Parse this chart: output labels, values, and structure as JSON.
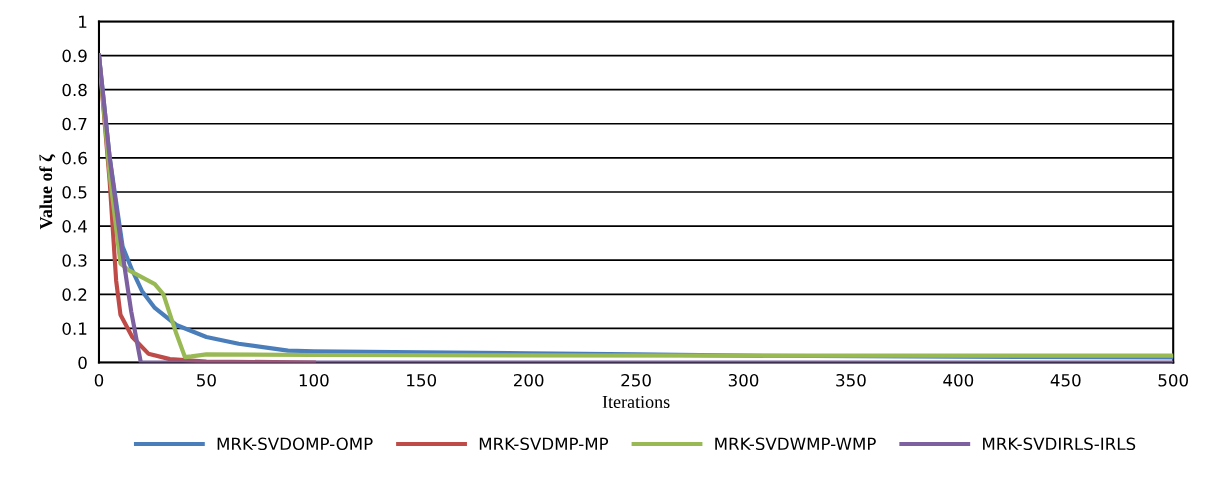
{
  "chart_data": {
    "type": "line",
    "xlabel": "Iterations",
    "ylabel": "Value of ζ",
    "xlim": [
      0,
      500
    ],
    "xticks": [
      0,
      50,
      100,
      150,
      200,
      250,
      300,
      350,
      400,
      450,
      500
    ],
    "ylim": [
      0,
      1
    ],
    "yticks": [
      0,
      0.1,
      0.2,
      0.3,
      0.4,
      0.5,
      0.6,
      0.7,
      0.8,
      0.9,
      1
    ],
    "grid": "y",
    "legend": "bottom",
    "marker": "none",
    "line_style": "solid",
    "series": [
      {
        "name": "MRK-SVDOMP-OMP",
        "color": "#4a7ebb",
        "x": [
          0,
          5,
          11,
          15.5,
          20,
          26,
          36,
          50,
          65,
          88,
          100,
          150,
          200,
          250,
          300,
          400,
          500
        ],
        "values": [
          0.9,
          0.6,
          0.34,
          0.27,
          0.21,
          0.16,
          0.11,
          0.075,
          0.055,
          0.035,
          0.033,
          0.03,
          0.027,
          0.024,
          0.02,
          0.017,
          0.015
        ]
      },
      {
        "name": "MRK-SVDMP-MP",
        "color": "#be4b48",
        "x": [
          0,
          5,
          8,
          10,
          15.5,
          23,
          33,
          50,
          100
        ],
        "values": [
          0.9,
          0.53,
          0.24,
          0.14,
          0.075,
          0.026,
          0.01,
          0.003,
          0
        ]
      },
      {
        "name": "MRK-SVDWMP-WMP",
        "color": "#98b954",
        "x": [
          0,
          5,
          10,
          14,
          26,
          30,
          36,
          40,
          43,
          50,
          100,
          300,
          500
        ],
        "values": [
          0.9,
          0.55,
          0.29,
          0.27,
          0.23,
          0.2,
          0.085,
          0.016,
          0.018,
          0.024,
          0.022,
          0.02,
          0.02
        ]
      },
      {
        "name": "MRK-SVDIRLS-IRLS",
        "color": "#7d60a0",
        "x": [
          0,
          5,
          10,
          15,
          19.5,
          500
        ],
        "values": [
          0.9,
          0.6,
          0.36,
          0.15,
          0,
          0
        ]
      }
    ]
  }
}
